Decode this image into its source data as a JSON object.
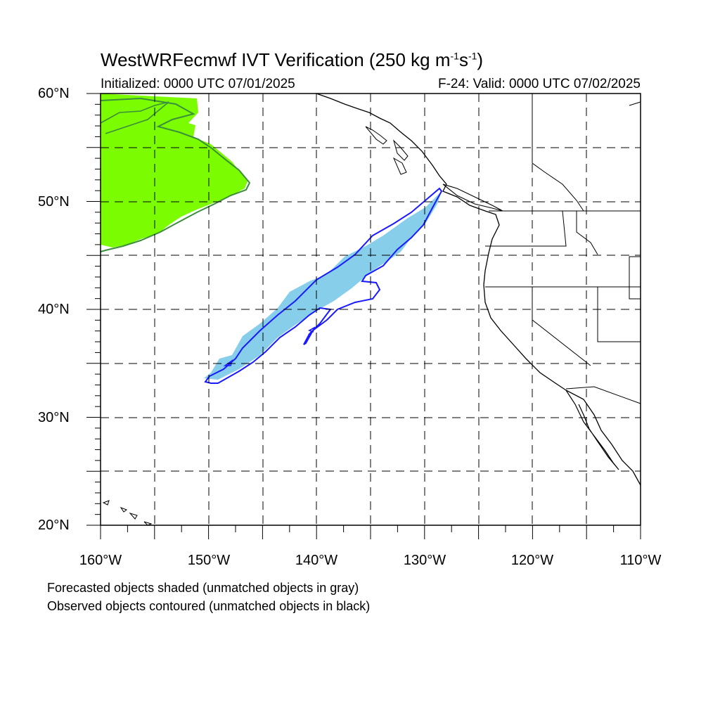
{
  "title": {
    "main": "WestWRFecmwf IVT Verification (250 kg m",
    "sup1": "-1",
    "mid": "s",
    "sup2": "-1",
    "end": ")"
  },
  "subtitle": {
    "initialized": "Initialized: 0000 UTC 07/01/2025",
    "valid": "F-24: Valid: 0000 UTC 07/02/2025"
  },
  "axes": {
    "lat_labels": [
      "60°N",
      "50°N",
      "40°N",
      "30°N",
      "20°N"
    ],
    "lon_labels": [
      "160°W",
      "150°W",
      "140°W",
      "130°W",
      "120°W",
      "110°W"
    ],
    "lat_range": [
      20,
      60
    ],
    "lon_range": [
      -160,
      -110
    ]
  },
  "notes": {
    "forecast": "Forecasted objects shaded (unmatched objects in gray)",
    "observed": "Observed objects contoured (unmatched objects in black)"
  },
  "colors": {
    "forecast_green": "#7cfc00",
    "observed_green": "#3a8f3a",
    "forecast_blue": "#87ceeb",
    "observed_blue": "#1a1aff"
  }
}
